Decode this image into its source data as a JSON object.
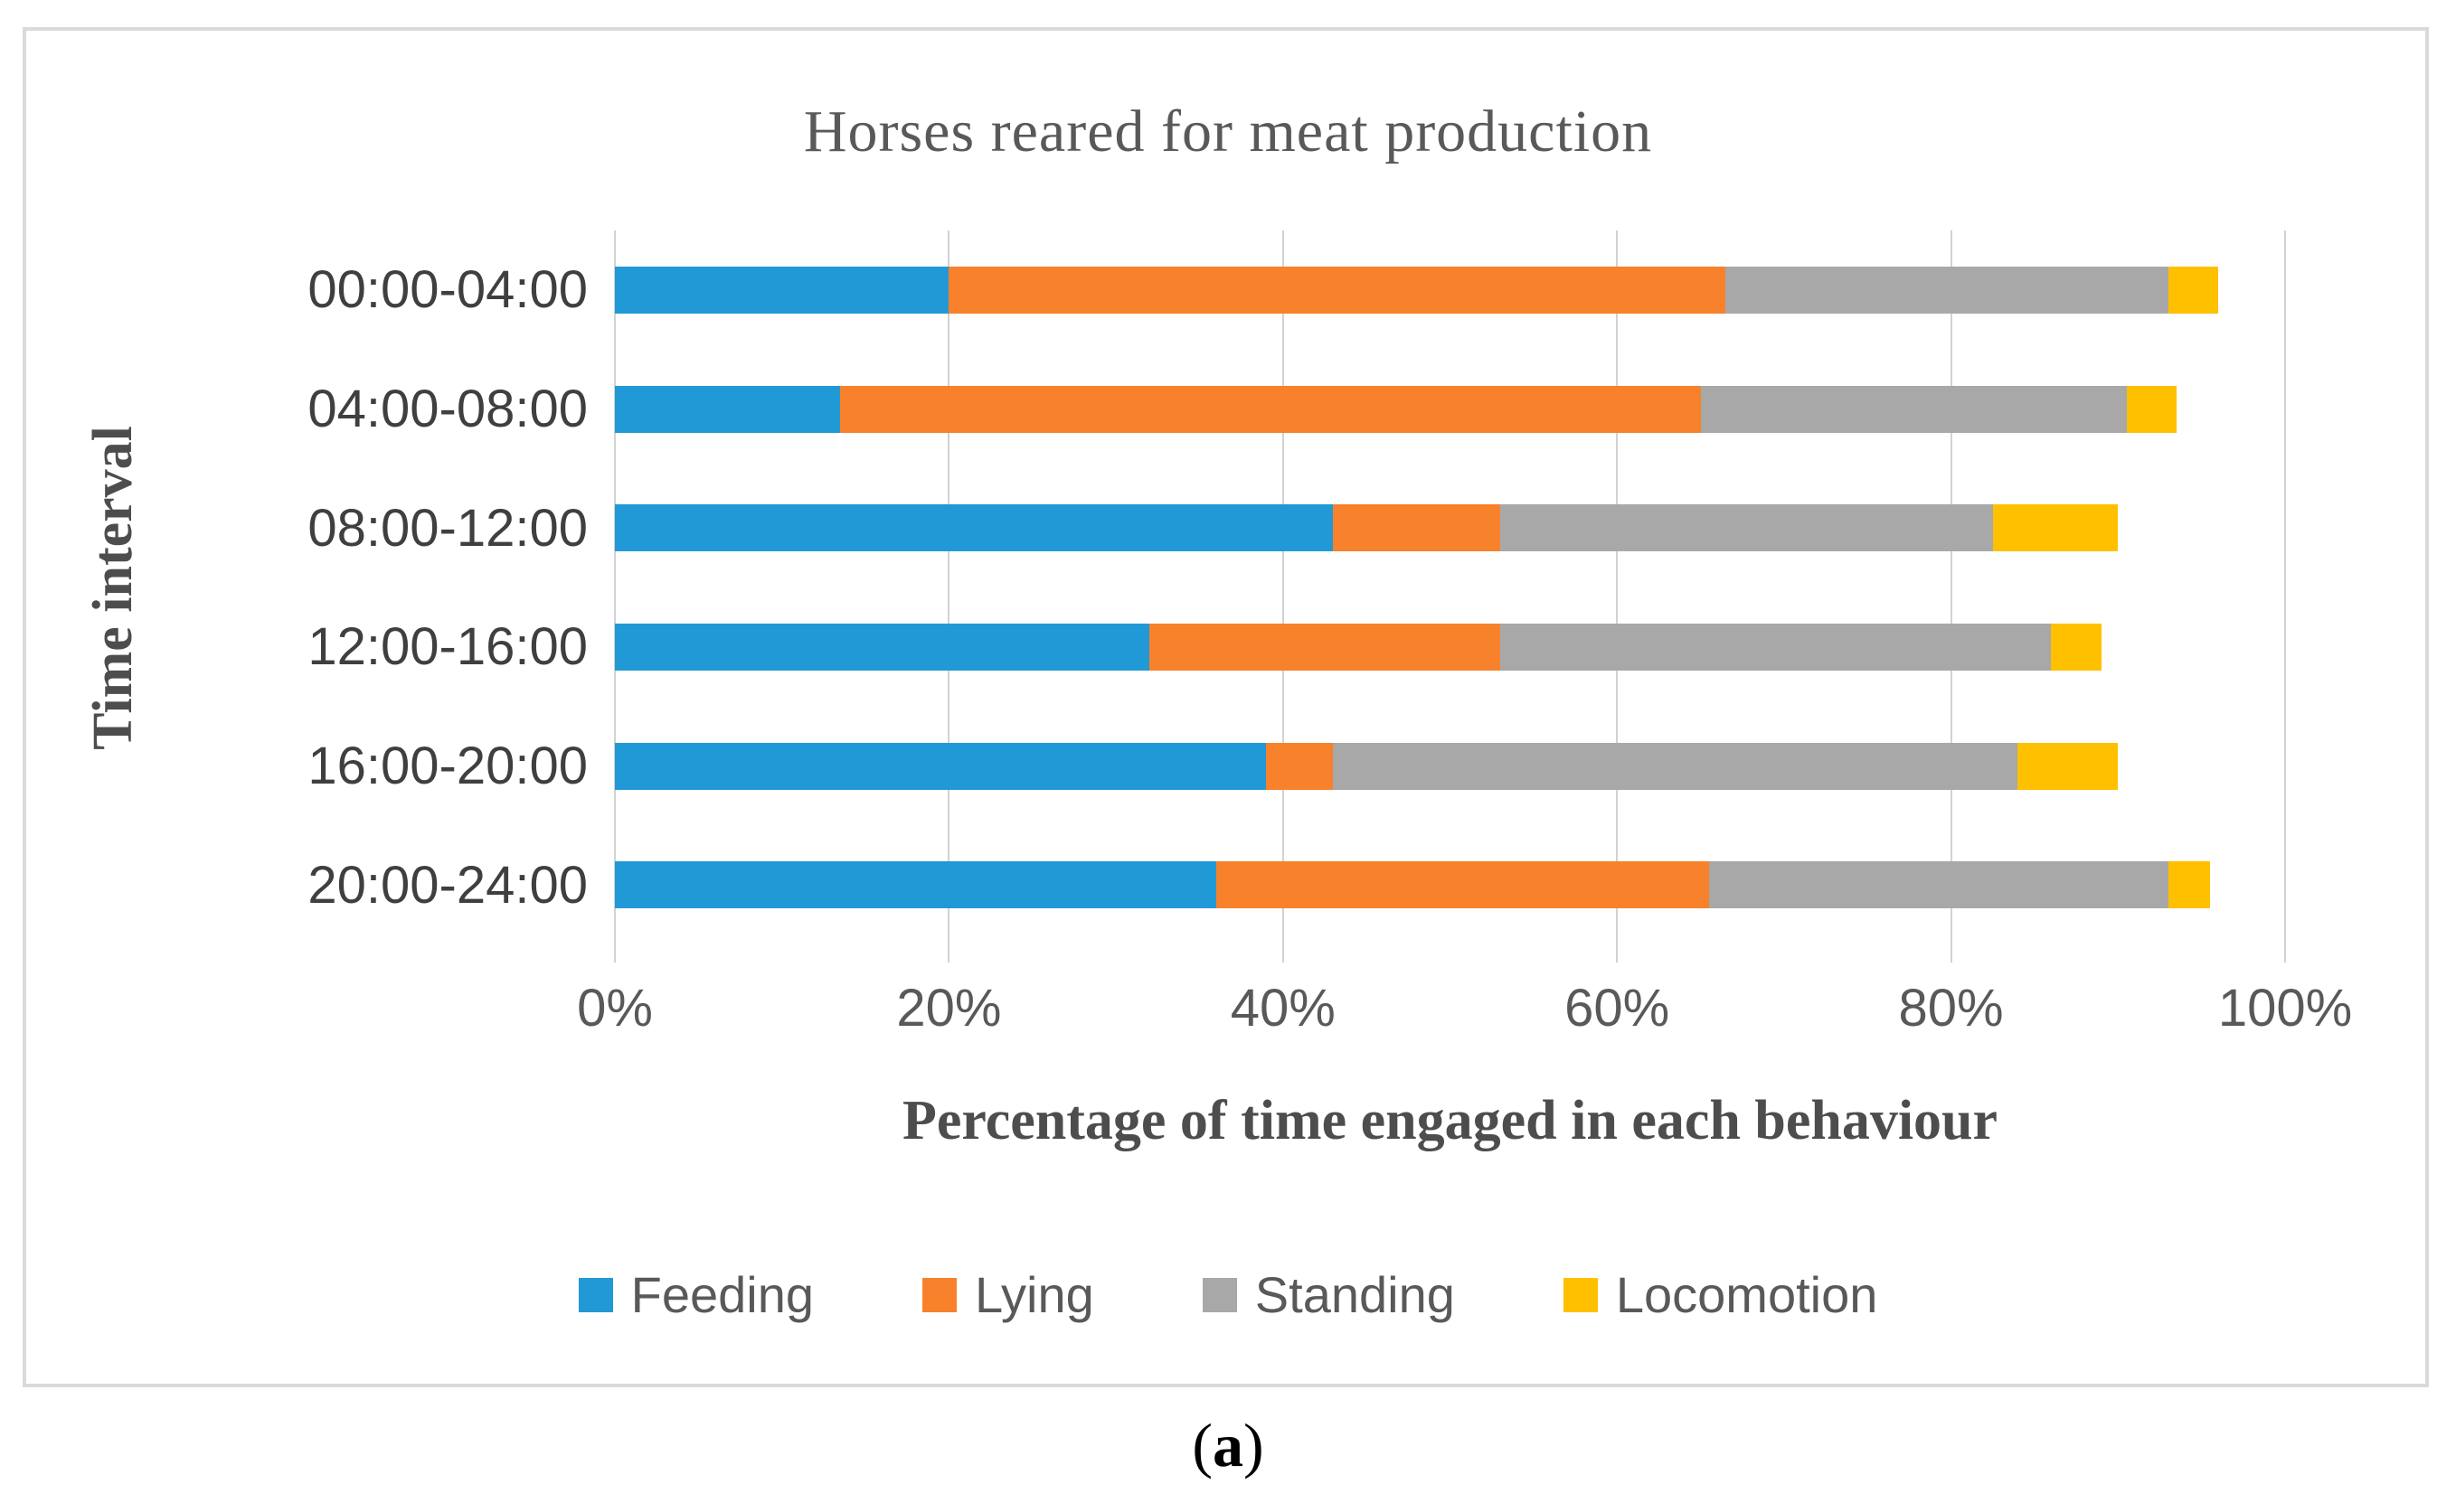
{
  "caption": {
    "prefix": "(",
    "letter": "a",
    "suffix": ")"
  },
  "chart_data": {
    "type": "bar",
    "orientation": "horizontal",
    "stacked": true,
    "title": "Horses reared for meat production",
    "xlabel": "Percentage of time engaged in each behaviour",
    "ylabel": "Time interval",
    "categories": [
      "00:00-04:00",
      "04:00-08:00",
      "08:00-12:00",
      "12:00-16:00",
      "16:00-20:00",
      "20:00-24:00"
    ],
    "series": [
      {
        "name": "Feeding",
        "color": "#2199D6",
        "values": [
          20,
          13.5,
          43,
          32,
          39,
          36
        ]
      },
      {
        "name": "Lying",
        "color": "#F8812B",
        "values": [
          46.5,
          51.5,
          10,
          21,
          4,
          29.5
        ]
      },
      {
        "name": "Standing",
        "color": "#A8A8A8",
        "values": [
          26.5,
          25.5,
          29.5,
          33,
          41,
          27.5
        ]
      },
      {
        "name": "Locomotion",
        "color": "#FFC000",
        "values": [
          3,
          3,
          7.5,
          3,
          6,
          2.5
        ]
      }
    ],
    "x_ticks": [
      "0%",
      "20%",
      "40%",
      "60%",
      "80%",
      "100%"
    ],
    "xlim": [
      0,
      100
    ],
    "grid": true,
    "legend_position": "bottom",
    "gridline_color": "#d2d2d2"
  }
}
